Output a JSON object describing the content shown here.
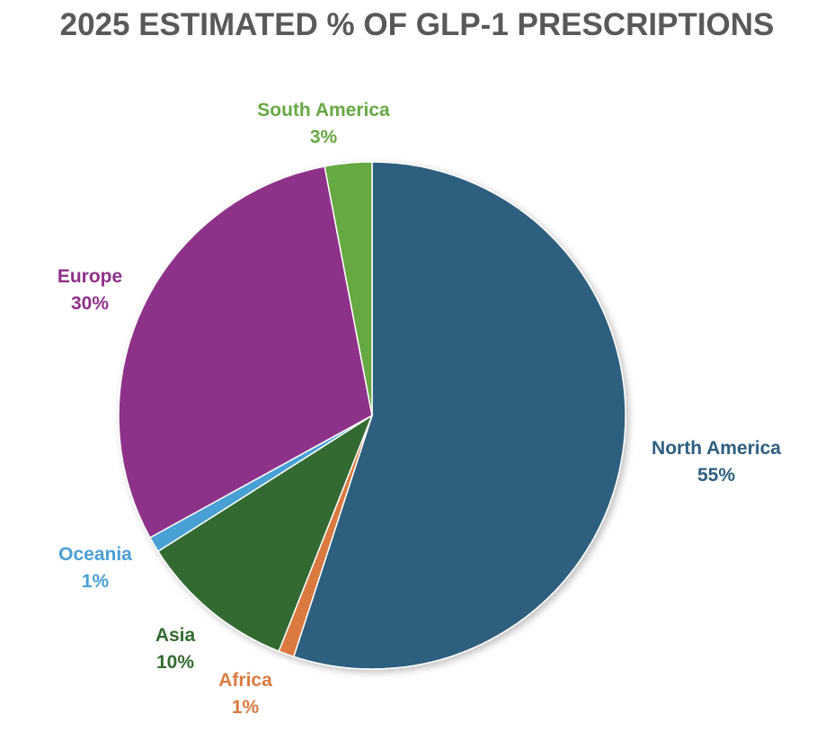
{
  "chart_data": {
    "type": "pie",
    "title": "2025 ESTIMATED % OF GLP-1 PRESCRIPTIONS",
    "start": "12 o'clock",
    "direction": "clockwise",
    "slices": [
      {
        "label": "North America",
        "value": 55,
        "value_label": "55%",
        "color": "#2e5f7f"
      },
      {
        "label": "Africa",
        "value": 1,
        "value_label": "1%",
        "color": "#db7a40"
      },
      {
        "label": "Asia",
        "value": 10,
        "value_label": "10%",
        "color": "#336a30"
      },
      {
        "label": "Oceania",
        "value": 1,
        "value_label": "1%",
        "color": "#4aa0d5"
      },
      {
        "label": "Europe",
        "value": 30,
        "value_label": "30%",
        "color": "#8e3189"
      },
      {
        "label": "South America",
        "value": 3,
        "value_label": "3%",
        "color": "#66a843"
      }
    ]
  }
}
